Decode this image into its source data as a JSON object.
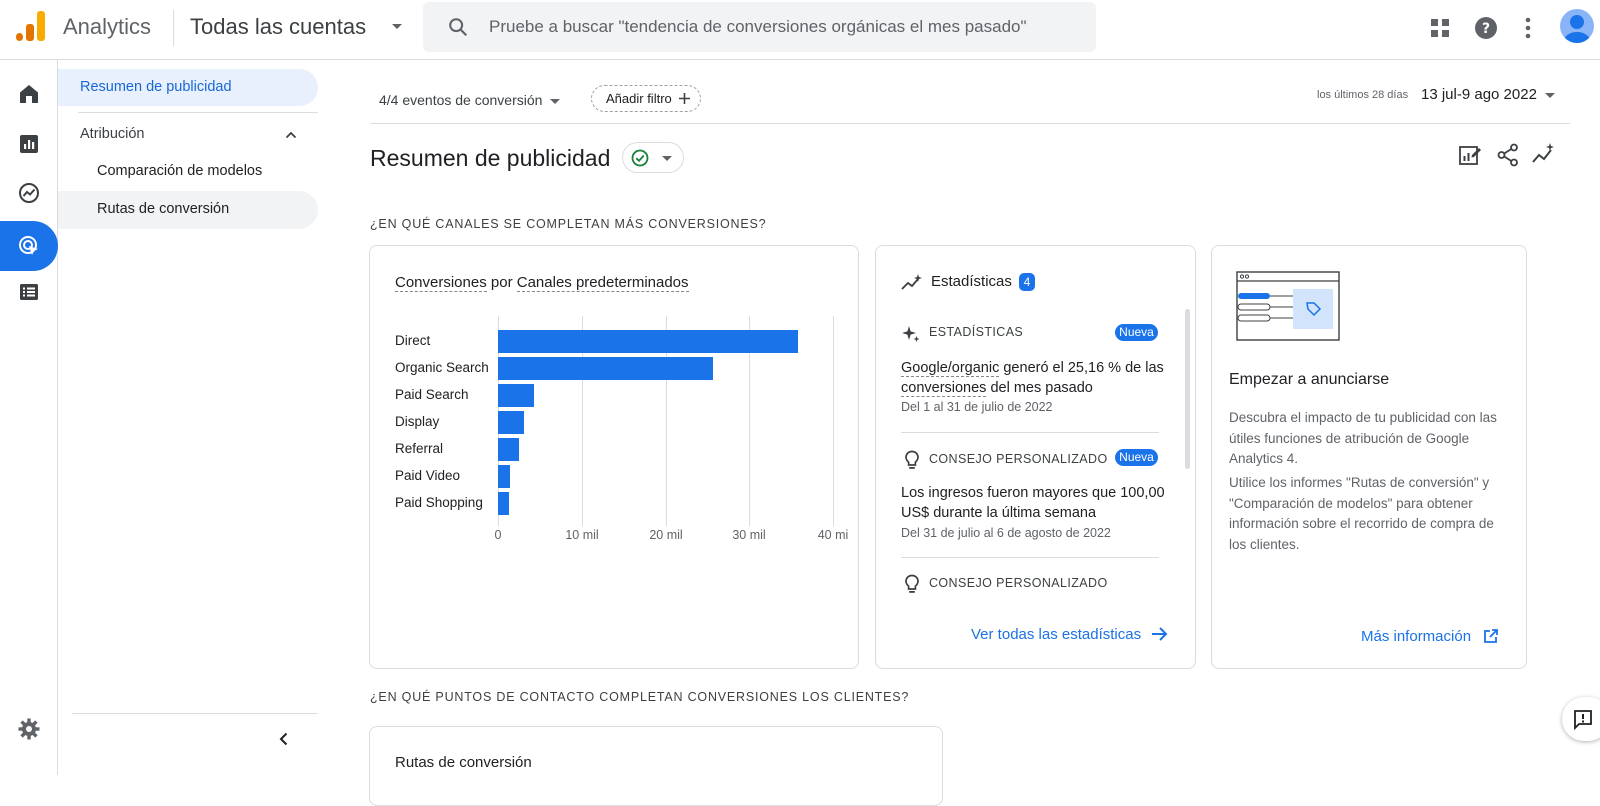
{
  "topbar": {
    "app_name": "Analytics",
    "account": "Todas las cuentas",
    "search_placeholder": "Pruebe a buscar \"tendencia de conversiones orgánicas el mes pasado\""
  },
  "sidebar": {
    "selected": "Resumen de publicidad",
    "section": "Atribución",
    "items": [
      {
        "label": "Comparación de modelos"
      },
      {
        "label": "Rutas de conversión"
      }
    ]
  },
  "filters": {
    "events": "4/4 eventos de conversión",
    "add_filter": "Añadir filtro",
    "date_range_label": "los últimos 28 días",
    "date_range": "13 jul-9 ago 2022"
  },
  "page": {
    "title": "Resumen de publicidad",
    "section1": "¿EN QUÉ CANALES SE COMPLETAN MÁS CONVERSIONES?",
    "section2": "¿EN QUÉ PUNTOS DE CONTACTO COMPLETAN CONVERSIONES LOS CLIENTES?"
  },
  "chart_card": {
    "title_part1": "Conversiones",
    "title_part2": "por",
    "title_part3": "Canales predeterminados"
  },
  "chart_data": {
    "type": "bar",
    "orientation": "horizontal",
    "categories": [
      "Direct",
      "Organic Search",
      "Paid Search",
      "Display",
      "Referral",
      "Paid Video",
      "Paid Shopping"
    ],
    "values": [
      35800,
      25700,
      4300,
      3100,
      2500,
      1400,
      1300
    ],
    "xlim": [
      0,
      42000
    ],
    "ticks": [
      0,
      10000,
      20000,
      30000,
      40000
    ],
    "tick_labels": [
      "0",
      "10 mil",
      "20 mil",
      "30 mil",
      "40 mi"
    ],
    "color": "#1a73e8",
    "grid": true
  },
  "insights": {
    "title": "Estadísticas",
    "count": "4",
    "items": [
      {
        "kind": "ESTADÍSTICAS",
        "badge": "Nueva",
        "text_prefix": "Google/organic",
        "text_mid": " generó el 25,16 % de las ",
        "text_link": "conversiones",
        "text_suffix": " del mes pasado",
        "date": "Del 1 al 31 de julio de 2022"
      },
      {
        "kind": "CONSEJO PERSONALIZADO",
        "badge": "Nueva",
        "text": "Los ingresos fueron mayores que 100,00 US$ durante la última semana",
        "date": "Del 31 de julio al 6 de agosto de 2022"
      },
      {
        "kind": "CONSEJO PERSONALIZADO"
      }
    ],
    "link": "Ver todas las estadísticas"
  },
  "promo": {
    "title": "Empezar a anunciarse",
    "p1": "Descubra el impacto de tu publicidad con las útiles funciones de atribución de Google Analytics 4.",
    "p2": "Utilice los informes \"Rutas de conversión\" y \"Comparación de modelos\" para obtener información sobre el recorrido de compra de los clientes.",
    "link": "Más información"
  },
  "paths_card": {
    "title": "Rutas de conversión"
  }
}
